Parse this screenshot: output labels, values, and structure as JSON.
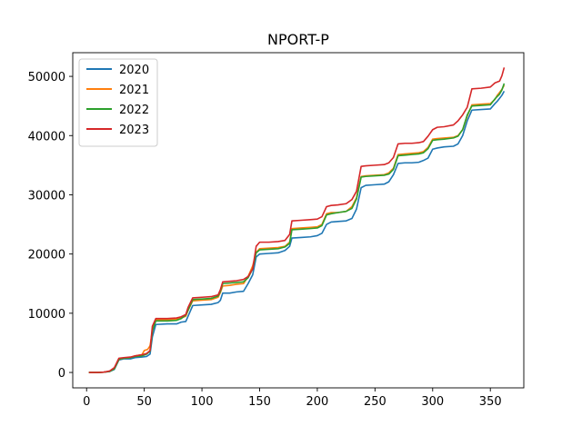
{
  "chart_data": {
    "type": "line",
    "title": "NPORT-P",
    "xlabel": "",
    "ylabel": "",
    "xlim": [
      -12,
      379
    ],
    "ylim": [
      -2600,
      54000
    ],
    "x_ticks": [
      0,
      50,
      100,
      150,
      200,
      250,
      300,
      350
    ],
    "y_ticks": [
      0,
      10000,
      20000,
      30000,
      40000,
      50000
    ],
    "legend_position": "top-left",
    "grid": false,
    "series": [
      {
        "name": "2020",
        "color": "#1f77b4",
        "points": [
          [
            2,
            0
          ],
          [
            10,
            0
          ],
          [
            15,
            50
          ],
          [
            20,
            150
          ],
          [
            24,
            500
          ],
          [
            28,
            2100
          ],
          [
            32,
            2300
          ],
          [
            38,
            2300
          ],
          [
            42,
            2500
          ],
          [
            48,
            2600
          ],
          [
            52,
            2700
          ],
          [
            55,
            3100
          ],
          [
            57,
            6000
          ],
          [
            60,
            8100
          ],
          [
            70,
            8200
          ],
          [
            78,
            8200
          ],
          [
            82,
            8500
          ],
          [
            86,
            8600
          ],
          [
            88,
            9500
          ],
          [
            92,
            11300
          ],
          [
            100,
            11400
          ],
          [
            108,
            11500
          ],
          [
            114,
            11800
          ],
          [
            116,
            12200
          ],
          [
            118,
            13400
          ],
          [
            124,
            13400
          ],
          [
            130,
            13600
          ],
          [
            136,
            13700
          ],
          [
            140,
            15000
          ],
          [
            144,
            16500
          ],
          [
            147,
            19500
          ],
          [
            150,
            20000
          ],
          [
            158,
            20100
          ],
          [
            166,
            20200
          ],
          [
            172,
            20600
          ],
          [
            176,
            21300
          ],
          [
            178,
            22700
          ],
          [
            186,
            22800
          ],
          [
            194,
            22900
          ],
          [
            200,
            23100
          ],
          [
            204,
            23500
          ],
          [
            208,
            25000
          ],
          [
            212,
            25400
          ],
          [
            218,
            25500
          ],
          [
            225,
            25600
          ],
          [
            230,
            26000
          ],
          [
            234,
            27600
          ],
          [
            238,
            31200
          ],
          [
            242,
            31600
          ],
          [
            250,
            31700
          ],
          [
            258,
            31800
          ],
          [
            262,
            32200
          ],
          [
            266,
            33400
          ],
          [
            270,
            35300
          ],
          [
            276,
            35400
          ],
          [
            282,
            35400
          ],
          [
            288,
            35500
          ],
          [
            292,
            35800
          ],
          [
            296,
            36200
          ],
          [
            300,
            37700
          ],
          [
            304,
            37900
          ],
          [
            310,
            38100
          ],
          [
            318,
            38200
          ],
          [
            322,
            38600
          ],
          [
            326,
            40000
          ],
          [
            330,
            42500
          ],
          [
            334,
            44300
          ],
          [
            342,
            44400
          ],
          [
            350,
            44500
          ],
          [
            354,
            45400
          ],
          [
            356,
            45800
          ],
          [
            358,
            46300
          ],
          [
            360,
            46800
          ],
          [
            362,
            47500
          ]
        ]
      },
      {
        "name": "2021",
        "color": "#ff7f0e",
        "points": [
          [
            2,
            0
          ],
          [
            10,
            0
          ],
          [
            15,
            60
          ],
          [
            20,
            200
          ],
          [
            24,
            700
          ],
          [
            28,
            2200
          ],
          [
            32,
            2400
          ],
          [
            38,
            2500
          ],
          [
            42,
            2800
          ],
          [
            48,
            3000
          ],
          [
            50,
            3700
          ],
          [
            53,
            3900
          ],
          [
            55,
            4500
          ],
          [
            57,
            7000
          ],
          [
            60,
            8900
          ],
          [
            70,
            8900
          ],
          [
            78,
            9000
          ],
          [
            82,
            9200
          ],
          [
            86,
            9500
          ],
          [
            88,
            10500
          ],
          [
            92,
            12100
          ],
          [
            100,
            12200
          ],
          [
            108,
            12300
          ],
          [
            114,
            12700
          ],
          [
            116,
            13500
          ],
          [
            118,
            14600
          ],
          [
            124,
            14700
          ],
          [
            130,
            14900
          ],
          [
            136,
            15000
          ],
          [
            140,
            16200
          ],
          [
            144,
            18000
          ],
          [
            147,
            20300
          ],
          [
            150,
            20900
          ],
          [
            158,
            21000
          ],
          [
            166,
            21100
          ],
          [
            172,
            21300
          ],
          [
            176,
            22000
          ],
          [
            178,
            24300
          ],
          [
            186,
            24400
          ],
          [
            194,
            24500
          ],
          [
            200,
            24600
          ],
          [
            204,
            25000
          ],
          [
            208,
            26800
          ],
          [
            212,
            27000
          ],
          [
            218,
            27000
          ],
          [
            225,
            27200
          ],
          [
            230,
            28000
          ],
          [
            234,
            29500
          ],
          [
            238,
            33100
          ],
          [
            242,
            33200
          ],
          [
            250,
            33300
          ],
          [
            258,
            33400
          ],
          [
            262,
            33700
          ],
          [
            266,
            34500
          ],
          [
            270,
            36800
          ],
          [
            276,
            36900
          ],
          [
            282,
            37000
          ],
          [
            288,
            37100
          ],
          [
            292,
            37300
          ],
          [
            296,
            38000
          ],
          [
            300,
            39400
          ],
          [
            304,
            39500
          ],
          [
            310,
            39600
          ],
          [
            318,
            39700
          ],
          [
            322,
            40000
          ],
          [
            326,
            41000
          ],
          [
            330,
            43300
          ],
          [
            334,
            45200
          ],
          [
            342,
            45300
          ],
          [
            350,
            45400
          ],
          [
            354,
            46100
          ],
          [
            356,
            46800
          ],
          [
            358,
            47300
          ],
          [
            360,
            47800
          ],
          [
            362,
            48500
          ]
        ]
      },
      {
        "name": "2022",
        "color": "#2ca02c",
        "points": [
          [
            2,
            0
          ],
          [
            10,
            0
          ],
          [
            15,
            50
          ],
          [
            20,
            180
          ],
          [
            24,
            600
          ],
          [
            28,
            2200
          ],
          [
            32,
            2400
          ],
          [
            38,
            2500
          ],
          [
            42,
            2700
          ],
          [
            48,
            2800
          ],
          [
            52,
            3100
          ],
          [
            55,
            3600
          ],
          [
            57,
            7000
          ],
          [
            60,
            8700
          ],
          [
            70,
            8700
          ],
          [
            78,
            8800
          ],
          [
            82,
            9100
          ],
          [
            86,
            9700
          ],
          [
            88,
            10500
          ],
          [
            92,
            12300
          ],
          [
            100,
            12400
          ],
          [
            108,
            12500
          ],
          [
            114,
            12900
          ],
          [
            116,
            13700
          ],
          [
            118,
            15000
          ],
          [
            124,
            15100
          ],
          [
            130,
            15200
          ],
          [
            136,
            15300
          ],
          [
            140,
            16000
          ],
          [
            144,
            17500
          ],
          [
            147,
            20200
          ],
          [
            150,
            20700
          ],
          [
            158,
            20800
          ],
          [
            166,
            20900
          ],
          [
            172,
            21200
          ],
          [
            176,
            21800
          ],
          [
            178,
            24100
          ],
          [
            186,
            24200
          ],
          [
            194,
            24300
          ],
          [
            200,
            24400
          ],
          [
            204,
            24800
          ],
          [
            208,
            26600
          ],
          [
            212,
            26800
          ],
          [
            218,
            27000
          ],
          [
            225,
            27200
          ],
          [
            230,
            27700
          ],
          [
            234,
            29300
          ],
          [
            238,
            33000
          ],
          [
            242,
            33100
          ],
          [
            250,
            33200
          ],
          [
            258,
            33300
          ],
          [
            262,
            33500
          ],
          [
            266,
            34300
          ],
          [
            270,
            36600
          ],
          [
            276,
            36700
          ],
          [
            282,
            36800
          ],
          [
            288,
            36900
          ],
          [
            292,
            37100
          ],
          [
            296,
            37800
          ],
          [
            300,
            39200
          ],
          [
            304,
            39300
          ],
          [
            310,
            39400
          ],
          [
            318,
            39600
          ],
          [
            322,
            39900
          ],
          [
            326,
            41000
          ],
          [
            330,
            43500
          ],
          [
            334,
            45000
          ],
          [
            342,
            45100
          ],
          [
            350,
            45200
          ],
          [
            354,
            46200
          ],
          [
            356,
            46600
          ],
          [
            358,
            47000
          ],
          [
            360,
            47700
          ],
          [
            362,
            48800
          ]
        ]
      },
      {
        "name": "2023",
        "color": "#d62728",
        "points": [
          [
            2,
            0
          ],
          [
            10,
            0
          ],
          [
            15,
            60
          ],
          [
            20,
            250
          ],
          [
            24,
            800
          ],
          [
            28,
            2400
          ],
          [
            32,
            2500
          ],
          [
            38,
            2600
          ],
          [
            42,
            2800
          ],
          [
            48,
            3000
          ],
          [
            52,
            3200
          ],
          [
            55,
            3700
          ],
          [
            57,
            7800
          ],
          [
            60,
            9100
          ],
          [
            70,
            9100
          ],
          [
            78,
            9200
          ],
          [
            82,
            9400
          ],
          [
            86,
            9800
          ],
          [
            88,
            11000
          ],
          [
            92,
            12600
          ],
          [
            100,
            12700
          ],
          [
            108,
            12800
          ],
          [
            114,
            13100
          ],
          [
            116,
            14000
          ],
          [
            118,
            15300
          ],
          [
            124,
            15400
          ],
          [
            130,
            15500
          ],
          [
            136,
            15700
          ],
          [
            140,
            16200
          ],
          [
            144,
            17500
          ],
          [
            147,
            21300
          ],
          [
            150,
            22000
          ],
          [
            158,
            22000
          ],
          [
            166,
            22100
          ],
          [
            172,
            22300
          ],
          [
            176,
            23300
          ],
          [
            178,
            25600
          ],
          [
            186,
            25700
          ],
          [
            194,
            25800
          ],
          [
            200,
            25900
          ],
          [
            204,
            26300
          ],
          [
            208,
            28000
          ],
          [
            212,
            28200
          ],
          [
            218,
            28300
          ],
          [
            225,
            28500
          ],
          [
            230,
            29200
          ],
          [
            234,
            30600
          ],
          [
            238,
            34800
          ],
          [
            242,
            34900
          ],
          [
            250,
            35000
          ],
          [
            258,
            35100
          ],
          [
            262,
            35400
          ],
          [
            266,
            36300
          ],
          [
            270,
            38600
          ],
          [
            276,
            38700
          ],
          [
            282,
            38700
          ],
          [
            288,
            38800
          ],
          [
            292,
            39000
          ],
          [
            296,
            39900
          ],
          [
            300,
            41000
          ],
          [
            304,
            41400
          ],
          [
            310,
            41500
          ],
          [
            318,
            41800
          ],
          [
            322,
            42500
          ],
          [
            326,
            43500
          ],
          [
            330,
            44800
          ],
          [
            334,
            47900
          ],
          [
            342,
            48000
          ],
          [
            350,
            48200
          ],
          [
            354,
            48900
          ],
          [
            358,
            49200
          ],
          [
            360,
            50100
          ],
          [
            362,
            51500
          ]
        ]
      }
    ]
  }
}
